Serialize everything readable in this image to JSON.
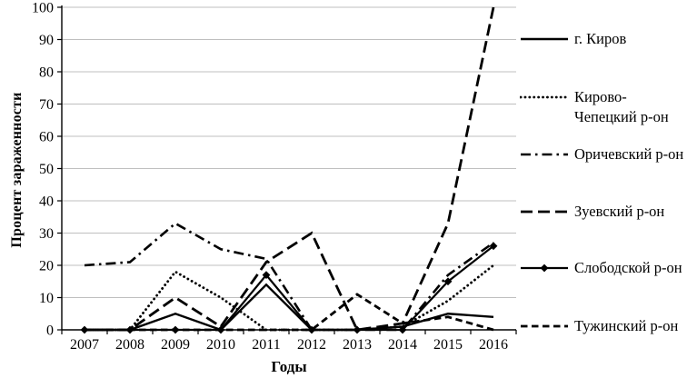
{
  "chart_data": {
    "type": "line",
    "title": "",
    "xlabel": "Годы",
    "ylabel": "Процент зараженности",
    "x_categories": [
      "2007",
      "2008",
      "2009",
      "2010",
      "2011",
      "2012",
      "2013",
      "2014",
      "2015",
      "2016"
    ],
    "y_ticks": [
      0,
      10,
      20,
      30,
      40,
      50,
      60,
      70,
      80,
      90,
      100
    ],
    "ylim": [
      0,
      100
    ],
    "grid": "horizontal",
    "legend_position": "right",
    "line_color": "#000000",
    "grid_color": "#bfbfbf",
    "background_color": "#ffffff",
    "series": [
      {
        "name": "г. Киров",
        "style": "solid",
        "marker": "none",
        "values": [
          0,
          0,
          5,
          0,
          14,
          0,
          0,
          1,
          5,
          4
        ]
      },
      {
        "name": "Кирово-Чепецкий р-он",
        "style": "dotted",
        "marker": "none",
        "values": [
          0,
          0,
          18,
          10,
          0,
          0,
          0,
          1,
          9,
          20
        ]
      },
      {
        "name": "Оричевский р-он",
        "style": "dashdot",
        "marker": "none",
        "values": [
          20,
          21,
          33,
          25,
          22,
          0,
          0,
          0,
          17,
          27
        ]
      },
      {
        "name": "Зуевский р-он",
        "style": "longdash",
        "marker": "none",
        "values": [
          0,
          0,
          10,
          1,
          21,
          30,
          0,
          2,
          33,
          100
        ]
      },
      {
        "name": "Слободской р-он",
        "style": "solid-diamond",
        "marker": "diamond",
        "values": [
          0,
          0,
          0,
          0,
          17,
          0,
          0,
          0,
          15,
          26
        ]
      },
      {
        "name": "Тужинский р-он",
        "style": "dash",
        "marker": "none",
        "values": [
          0,
          0,
          0,
          0,
          0,
          0,
          11,
          2,
          4,
          0
        ]
      }
    ]
  }
}
